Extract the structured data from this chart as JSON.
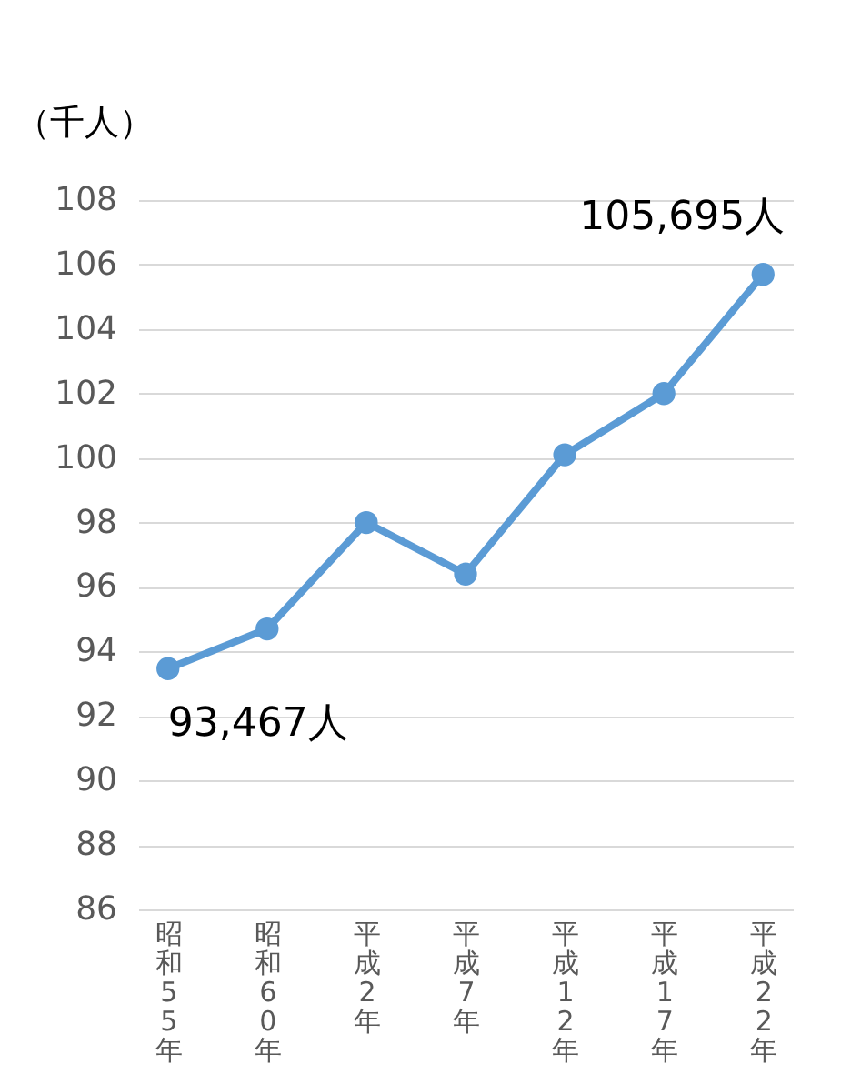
{
  "chart_data": {
    "type": "line",
    "ylabel": "（千人）",
    "categories": [
      "昭和55年",
      "昭和60年",
      "平成2年",
      "平成7年",
      "平成12年",
      "平成17年",
      "平成22年"
    ],
    "series": [
      {
        "color": "#5b9bd5",
        "values": [
          93.467,
          94.7,
          98.0,
          96.4,
          100.1,
          102.0,
          105.695
        ]
      }
    ],
    "ylim": [
      86,
      108
    ],
    "yticks": [
      86,
      88,
      90,
      92,
      94,
      96,
      98,
      100,
      102,
      104,
      106,
      108
    ],
    "grid": "y",
    "marker": "circle",
    "annotations": [
      {
        "text": "93,467人",
        "x": "昭和55年",
        "y": 93.467
      },
      {
        "text": "105,695人",
        "x": "平成22年",
        "y": 105.695
      }
    ]
  }
}
